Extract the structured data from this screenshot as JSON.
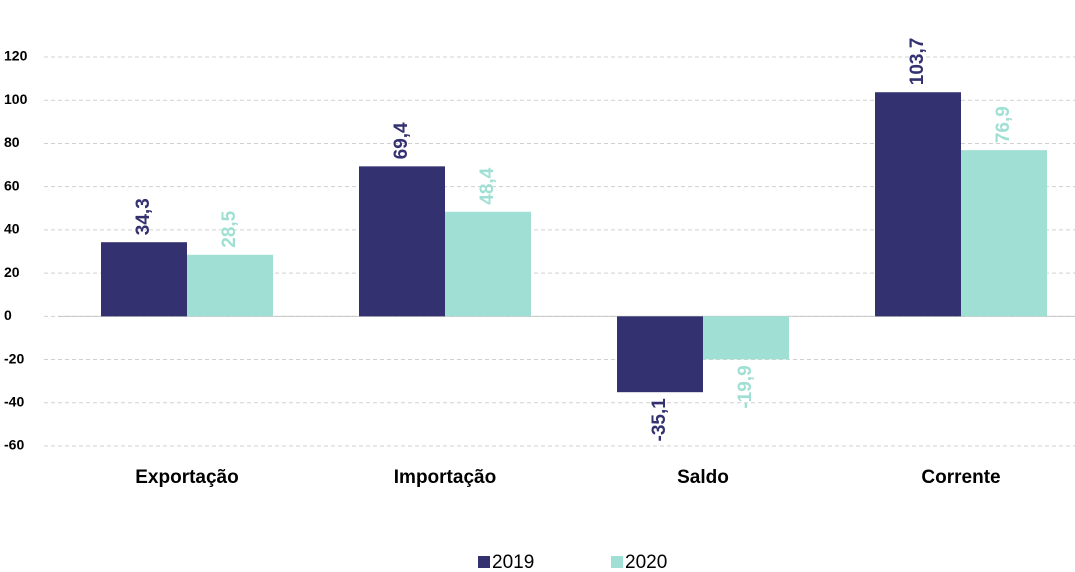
{
  "chart_data": {
    "type": "bar",
    "categories": [
      "Exportação",
      "Importação",
      "Saldo",
      "Corrente"
    ],
    "series": [
      {
        "name": "2019",
        "color": "#33316f",
        "values": [
          34.3,
          69.4,
          -35.1,
          103.7
        ],
        "value_labels": [
          "34,3",
          "69,4",
          "-35,1",
          "103,7"
        ]
      },
      {
        "name": "2020",
        "color": "#a0e0d4",
        "values": [
          28.5,
          48.4,
          -19.9,
          76.9
        ],
        "value_labels": [
          "28,5",
          "48,4",
          "-19,9",
          "76,9"
        ]
      }
    ],
    "ylim": [
      -60,
      120
    ],
    "yticks": [
      -60,
      -40,
      -20,
      0,
      20,
      40,
      60,
      80,
      100,
      120
    ],
    "grid": true,
    "legend": "bottom"
  }
}
